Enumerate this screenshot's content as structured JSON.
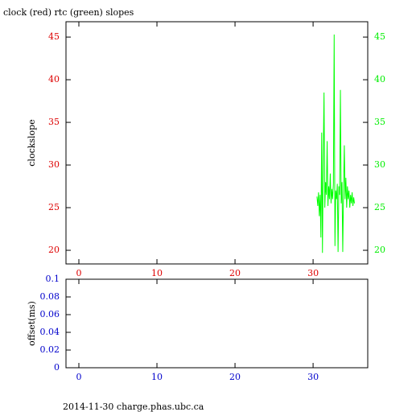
{
  "chart_data": [
    {
      "type": "line",
      "title": "clock (red) rtc (green) slopes",
      "ylabel": "clockslope",
      "x": [
        30.5,
        30.6,
        30.7,
        30.8,
        30.9,
        31.0,
        31.1,
        31.2,
        31.3,
        31.4,
        31.5,
        31.6,
        31.7,
        31.8,
        31.9,
        32.0,
        32.1,
        32.2,
        32.3,
        32.4,
        32.5,
        32.6,
        32.7,
        32.8,
        32.9,
        33.0,
        33.1,
        33.2,
        33.3,
        33.4,
        33.5,
        33.6,
        33.7,
        33.8,
        33.9,
        34.0,
        34.1,
        34.2,
        34.3,
        34.4,
        34.5,
        34.6,
        34.7,
        34.8,
        34.9,
        35.0,
        35.1,
        35.2,
        35.3
      ],
      "series": [
        {
          "color": "#00ff00",
          "values": [
            26.3,
            25.2,
            26.8,
            24.0,
            26.5,
            21.5,
            33.8,
            19.7,
            31.0,
            38.5,
            25.0,
            28.0,
            26.5,
            32.8,
            25.2,
            27.5,
            26.0,
            29.0,
            25.5,
            27.2,
            26.0,
            27.8,
            45.3,
            20.5,
            27.0,
            26.0,
            27.8,
            19.8,
            27.5,
            26.5,
            38.8,
            25.5,
            28.0,
            19.8,
            27.0,
            32.3,
            26.0,
            28.5,
            25.0,
            27.5,
            26.0,
            27.0,
            25.0,
            26.5,
            25.5,
            26.8,
            25.2,
            26.2,
            25.5
          ]
        }
      ],
      "xlim": [
        -1.65,
        37.0
      ],
      "ylim": [
        18.4,
        46.8
      ],
      "xticks": [
        0,
        10,
        20,
        30
      ],
      "yticks": [
        20,
        25,
        30,
        35,
        40,
        45
      ],
      "y2lim": [
        18.4,
        46.8
      ],
      "y2ticks": [
        20,
        25,
        30,
        35,
        40,
        45
      ],
      "xtick_color": "#dd0000",
      "ytick_color": "#dd0000",
      "y2tick_color": "#00ee00"
    },
    {
      "type": "line",
      "ylabel": "offset(ms)",
      "series": [],
      "xlim": [
        -1.65,
        37.0
      ],
      "ylim": [
        0,
        0.1
      ],
      "xticks": [
        0,
        10,
        20,
        30
      ],
      "yticks": [
        0,
        0.02,
        0.04,
        0.06,
        0.08,
        0.1
      ],
      "xtick_color": "#0000cc",
      "ytick_color": "#0000cc"
    }
  ],
  "footer": "2014-11-30 charge.phas.ubc.ca"
}
